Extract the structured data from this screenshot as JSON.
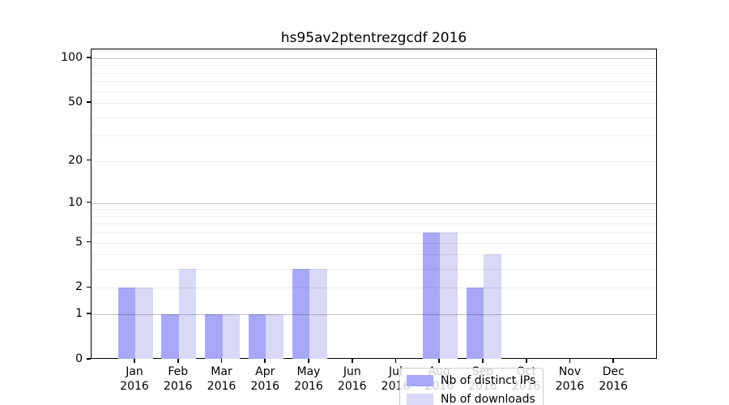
{
  "title": "hs95av2ptentrezgcdf 2016",
  "chart_data": {
    "type": "bar",
    "title": "hs95av2ptentrezgcdf 2016",
    "categories": [
      "Jan",
      "Feb",
      "Mar",
      "Apr",
      "May",
      "Jun",
      "Jul",
      "Aug",
      "Sep",
      "Oct",
      "Nov",
      "Dec"
    ],
    "year_label": "2016",
    "series": [
      {
        "name": "Nb of distinct IPs",
        "color": "#a8a8f6",
        "values": [
          2,
          1,
          1,
          1,
          3,
          0,
          0,
          6,
          2,
          0,
          0,
          0
        ]
      },
      {
        "name": "Nb of downloads",
        "color": "#d8d8f7",
        "values": [
          2,
          3,
          1,
          1,
          3,
          0,
          0,
          6,
          4,
          0,
          0,
          0
        ]
      }
    ],
    "y_scale": "log10(1+v)",
    "ylim": [
      0,
      115
    ],
    "y_tick_labels": [
      "0",
      "1",
      "2",
      "5",
      "10",
      "20",
      "50",
      "100"
    ],
    "y_tick_values": [
      0,
      1,
      2,
      5,
      10,
      20,
      50,
      100
    ],
    "y_major_gridlines": [
      1,
      10,
      100
    ],
    "y_minor_gridlines": [
      2,
      3,
      4,
      5,
      6,
      7,
      8,
      9,
      20,
      30,
      40,
      50,
      60,
      70,
      80,
      90
    ],
    "grid": true,
    "legend_position": "lower center, inside plot"
  }
}
